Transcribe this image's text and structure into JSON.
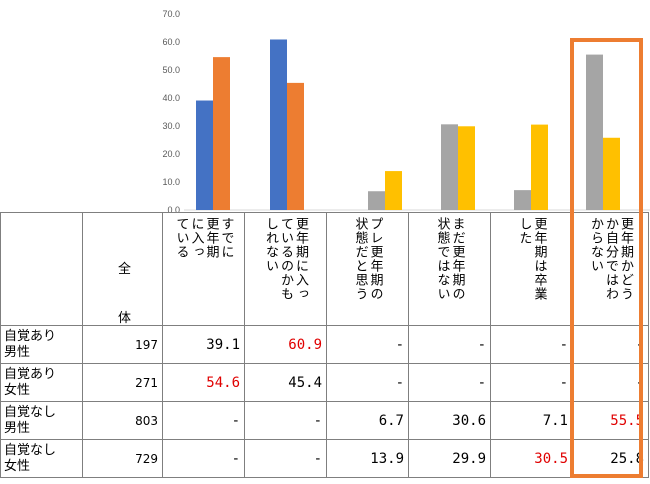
{
  "chart_data": {
    "type": "bar",
    "ylim": [
      0,
      70
    ],
    "yticks": [
      "0.0",
      "10.0",
      "20.0",
      "30.0",
      "40.0",
      "50.0",
      "60.0",
      "70.0"
    ],
    "grid": false,
    "categories": [
      "すでに更年期に入っている",
      "更年期に入っているのかもしれない",
      "プレ更年期の状態だと思う",
      "まだ更年期の状態ではない",
      "更年期は卒業した",
      "更年期かどうか自分ではわからない"
    ],
    "series": [
      {
        "values": [
          39.1,
          60.9,
          null,
          null,
          null,
          null
        ],
        "color": "#4472c4"
      },
      {
        "values": [
          54.6,
          45.4,
          null,
          null,
          null,
          null
        ],
        "color": "#ed7d31"
      },
      {
        "values": [
          null,
          null,
          6.7,
          30.6,
          7.1,
          55.5
        ],
        "color": "#a5a5a5"
      },
      {
        "values": [
          null,
          null,
          13.9,
          29.9,
          30.5,
          25.8
        ],
        "color": "#ffc000"
      }
    ]
  },
  "table": {
    "header_total_top": "全",
    "header_total_bottom": "体",
    "col_headers": [
      "すでに\n更年期\nに入っ\nている",
      "更年期に入っ\nているのかも\nしれない",
      "プレ更年期の\n状態だと思う",
      "まだ更年期の\n状態ではない",
      "更年期は卒業\nした",
      "更年期かどう\nか自分ではわ\nからない"
    ],
    "rows": [
      {
        "label": "自覚あり\n男性",
        "n": "197",
        "values": [
          "39.1",
          "60.9",
          "-",
          "-",
          "-",
          "-"
        ],
        "red": [
          1
        ]
      },
      {
        "label": "自覚あり\n女性",
        "n": "271",
        "values": [
          "54.6",
          "45.4",
          "-",
          "-",
          "-",
          "-"
        ],
        "red": [
          0
        ]
      },
      {
        "label": "自覚なし\n男性",
        "n": "803",
        "values": [
          "-",
          "-",
          "6.7",
          "30.6",
          "7.1",
          "55.5"
        ],
        "red": [
          5
        ]
      },
      {
        "label": "自覚なし\n女性",
        "n": "729",
        "values": [
          "-",
          "-",
          "13.9",
          "29.9",
          "30.5",
          "25.8"
        ],
        "red": [
          4
        ]
      }
    ]
  }
}
